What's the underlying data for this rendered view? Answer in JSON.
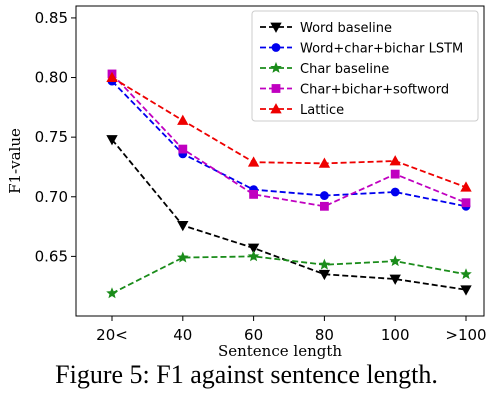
{
  "chart_data": {
    "type": "line",
    "categories": [
      "20<",
      "40",
      "60",
      "80",
      "100",
      ">100"
    ],
    "xlabel": "Sentence length",
    "ylabel": "F1-value",
    "ylim": [
      0.6,
      0.86
    ],
    "yticks": [
      0.65,
      0.7,
      0.75,
      0.8,
      0.85
    ],
    "ytick_labels": [
      "0.65",
      "0.70",
      "0.75",
      "0.80",
      "0.85"
    ],
    "grid": false,
    "legend_position": "top-right",
    "series": [
      {
        "name": "Word baseline",
        "color": "#000000",
        "marker": "triangle-down",
        "values": [
          0.748,
          0.676,
          0.657,
          0.635,
          0.631,
          0.622
        ]
      },
      {
        "name": "Word+char+bichar LSTM",
        "color": "#0000ee",
        "marker": "circle",
        "values": [
          0.797,
          0.736,
          0.706,
          0.701,
          0.704,
          0.692
        ]
      },
      {
        "name": "Char baseline",
        "color": "#1a8c1a",
        "marker": "star",
        "values": [
          0.619,
          0.649,
          0.65,
          0.643,
          0.646,
          0.635
        ]
      },
      {
        "name": "Char+bichar+softword",
        "color": "#c000c0",
        "marker": "square",
        "values": [
          0.803,
          0.74,
          0.702,
          0.692,
          0.719,
          0.695
        ]
      },
      {
        "name": "Lattice",
        "color": "#ee0000",
        "marker": "triangle-up",
        "values": [
          0.8,
          0.764,
          0.729,
          0.728,
          0.73,
          0.708
        ]
      }
    ]
  },
  "caption": "Figure 5: F1 against sentence length."
}
